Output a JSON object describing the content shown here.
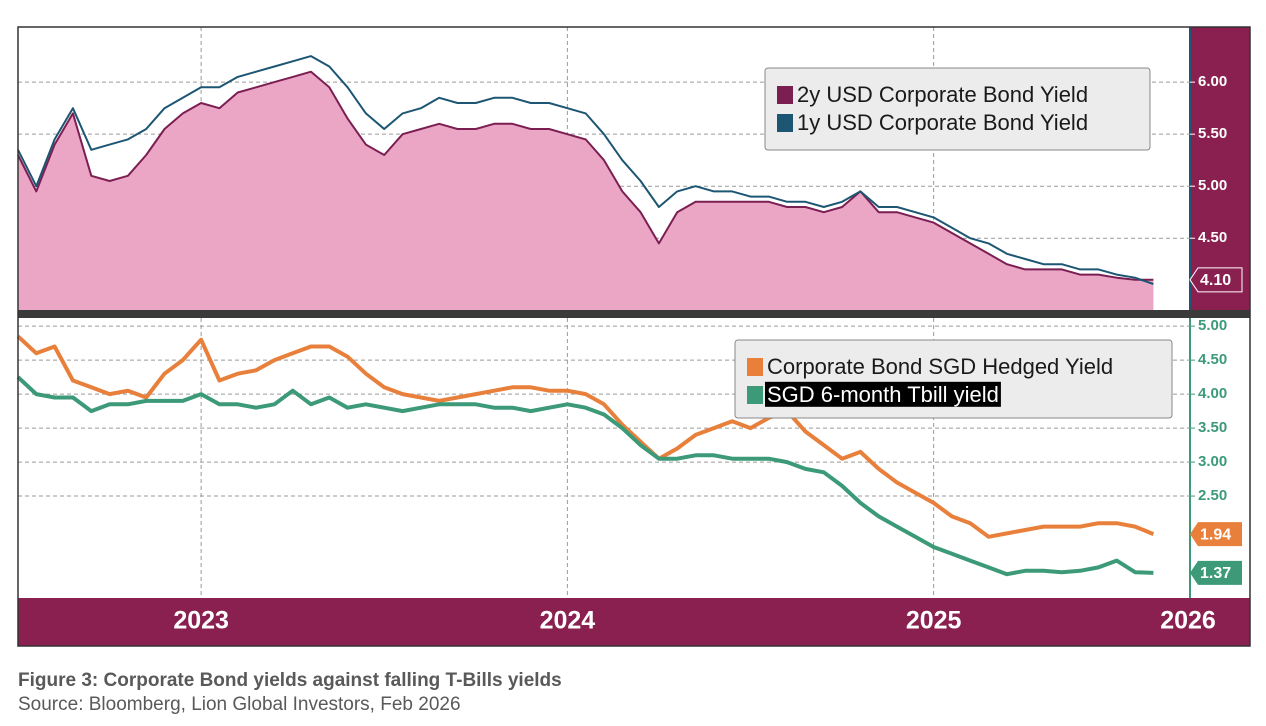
{
  "caption": "Figure 3: Corporate Bond yields against falling T-Bills yields",
  "source": "Source: Bloomberg, Lion Global Investors, Feb 2026",
  "chart_data": [
    {
      "type": "area",
      "x": [
        2022.5,
        2022.55,
        2022.6,
        2022.65,
        2022.7,
        2022.75,
        2022.8,
        2022.85,
        2022.9,
        2022.95,
        2023.0,
        2023.05,
        2023.1,
        2023.15,
        2023.2,
        2023.25,
        2023.3,
        2023.35,
        2023.4,
        2023.45,
        2023.5,
        2023.55,
        2023.6,
        2023.65,
        2023.7,
        2023.75,
        2023.8,
        2023.85,
        2023.9,
        2023.95,
        2024.0,
        2024.05,
        2024.1,
        2024.15,
        2024.2,
        2024.25,
        2024.3,
        2024.35,
        2024.4,
        2024.45,
        2024.5,
        2024.55,
        2024.6,
        2024.65,
        2024.7,
        2024.75,
        2024.8,
        2024.85,
        2024.9,
        2024.95,
        2025.0,
        2025.05,
        2025.1,
        2025.15,
        2025.2,
        2025.25,
        2025.3,
        2025.35,
        2025.4,
        2025.45,
        2025.5,
        2025.55,
        2025.6
      ],
      "xlim": [
        2022.5,
        2025.7
      ],
      "ylim": [
        3.81,
        6.53
      ],
      "yticks": [
        {
          "value": 4.5,
          "label": "4.50"
        },
        {
          "value": 5,
          "label": "5.00"
        },
        {
          "value": 5.5,
          "label": "5.50"
        },
        {
          "value": 6,
          "label": "6.00"
        }
      ],
      "grid": true,
      "series": [
        {
          "name": "2y USD Corporate Bond Yield",
          "color": "#7b1f52",
          "fill": "#eba6c6",
          "values": [
            5.3,
            4.95,
            5.4,
            5.7,
            5.1,
            5.05,
            5.1,
            5.3,
            5.55,
            5.7,
            5.8,
            5.75,
            5.9,
            5.95,
            6.0,
            6.05,
            6.1,
            5.95,
            5.65,
            5.4,
            5.3,
            5.5,
            5.55,
            5.6,
            5.55,
            5.55,
            5.6,
            5.6,
            5.55,
            5.55,
            5.5,
            5.45,
            5.25,
            4.95,
            4.75,
            4.45,
            4.75,
            4.85,
            4.85,
            4.85,
            4.85,
            4.85,
            4.8,
            4.8,
            4.75,
            4.8,
            4.95,
            4.75,
            4.75,
            4.7,
            4.65,
            4.55,
            4.45,
            4.35,
            4.25,
            4.2,
            4.2,
            4.2,
            4.15,
            4.15,
            4.12,
            4.1,
            4.1
          ],
          "tag": {
            "value": 4.1,
            "label": "4.10"
          }
        },
        {
          "name": "1y USD Corporate Bond Yield",
          "color": "#1d5673",
          "values": [
            5.35,
            5.0,
            5.45,
            5.75,
            5.35,
            5.4,
            5.45,
            5.55,
            5.75,
            5.85,
            5.95,
            5.95,
            6.05,
            6.1,
            6.15,
            6.2,
            6.25,
            6.15,
            5.95,
            5.7,
            5.55,
            5.7,
            5.75,
            5.85,
            5.8,
            5.8,
            5.85,
            5.85,
            5.8,
            5.8,
            5.75,
            5.7,
            5.5,
            5.25,
            5.05,
            4.8,
            4.95,
            5.0,
            4.95,
            4.95,
            4.9,
            4.9,
            4.85,
            4.85,
            4.8,
            4.85,
            4.95,
            4.8,
            4.8,
            4.75,
            4.7,
            4.6,
            4.5,
            4.45,
            4.35,
            4.3,
            4.25,
            4.25,
            4.2,
            4.2,
            4.15,
            4.12,
            4.06
          ]
        }
      ]
    },
    {
      "type": "line",
      "x": [
        2022.5,
        2022.55,
        2022.6,
        2022.65,
        2022.7,
        2022.75,
        2022.8,
        2022.85,
        2022.9,
        2022.95,
        2023.0,
        2023.05,
        2023.1,
        2023.15,
        2023.2,
        2023.25,
        2023.3,
        2023.35,
        2023.4,
        2023.45,
        2023.5,
        2023.55,
        2023.6,
        2023.65,
        2023.7,
        2023.75,
        2023.8,
        2023.85,
        2023.9,
        2023.95,
        2024.0,
        2024.05,
        2024.1,
        2024.15,
        2024.2,
        2024.25,
        2024.3,
        2024.35,
        2024.4,
        2024.45,
        2024.5,
        2024.55,
        2024.6,
        2024.65,
        2024.7,
        2024.75,
        2024.8,
        2024.85,
        2024.9,
        2024.95,
        2025.0,
        2025.05,
        2025.1,
        2025.15,
        2025.2,
        2025.25,
        2025.3,
        2025.35,
        2025.4,
        2025.45,
        2025.5,
        2025.55,
        2025.6
      ],
      "xlim": [
        2022.5,
        2025.7
      ],
      "xticks": [
        2023,
        2024,
        2025,
        2026
      ],
      "ylim": [
        1.0,
        5.12
      ],
      "yticks": [
        {
          "value": 2.5,
          "label": "2.50"
        },
        {
          "value": 3,
          "label": "3.00"
        },
        {
          "value": 3.5,
          "label": "3.50"
        },
        {
          "value": 4,
          "label": "4.00"
        },
        {
          "value": 4.5,
          "label": "4.50"
        },
        {
          "value": 5,
          "label": "5.00"
        }
      ],
      "grid": true,
      "series": [
        {
          "name": "Corporate Bond SGD Hedged Yield",
          "color": "#e8803c",
          "values": [
            4.85,
            4.6,
            4.7,
            4.2,
            4.1,
            4.0,
            4.05,
            3.95,
            4.3,
            4.5,
            4.8,
            4.2,
            4.3,
            4.35,
            4.5,
            4.6,
            4.7,
            4.7,
            4.55,
            4.3,
            4.1,
            4.0,
            3.95,
            3.9,
            3.95,
            4.0,
            4.05,
            4.1,
            4.1,
            4.05,
            4.05,
            4.0,
            3.85,
            3.55,
            3.3,
            3.05,
            3.2,
            3.4,
            3.5,
            3.6,
            3.5,
            3.65,
            3.75,
            3.45,
            3.25,
            3.05,
            3.15,
            2.9,
            2.7,
            2.55,
            2.4,
            2.2,
            2.1,
            1.9,
            1.95,
            2.0,
            2.05,
            2.05,
            2.05,
            2.1,
            2.1,
            2.05,
            1.94
          ],
          "tag": 1.94
        },
        {
          "name": "SGD 6-month Tbill yield",
          "color": "#3c9a78",
          "values": [
            4.25,
            4.0,
            3.95,
            3.95,
            3.75,
            3.85,
            3.85,
            3.9,
            3.9,
            3.9,
            4.0,
            3.85,
            3.85,
            3.8,
            3.85,
            4.05,
            3.85,
            3.95,
            3.8,
            3.85,
            3.8,
            3.75,
            3.8,
            3.85,
            3.85,
            3.85,
            3.8,
            3.8,
            3.75,
            3.8,
            3.85,
            3.8,
            3.7,
            3.5,
            3.25,
            3.05,
            3.05,
            3.1,
            3.1,
            3.05,
            3.05,
            3.05,
            3.0,
            2.9,
            2.85,
            2.65,
            2.4,
            2.2,
            2.05,
            1.9,
            1.75,
            1.65,
            1.55,
            1.45,
            1.35,
            1.4,
            1.4,
            1.38,
            1.4,
            1.45,
            1.55,
            1.38,
            1.37
          ],
          "tag": 1.37
        }
      ]
    }
  ]
}
